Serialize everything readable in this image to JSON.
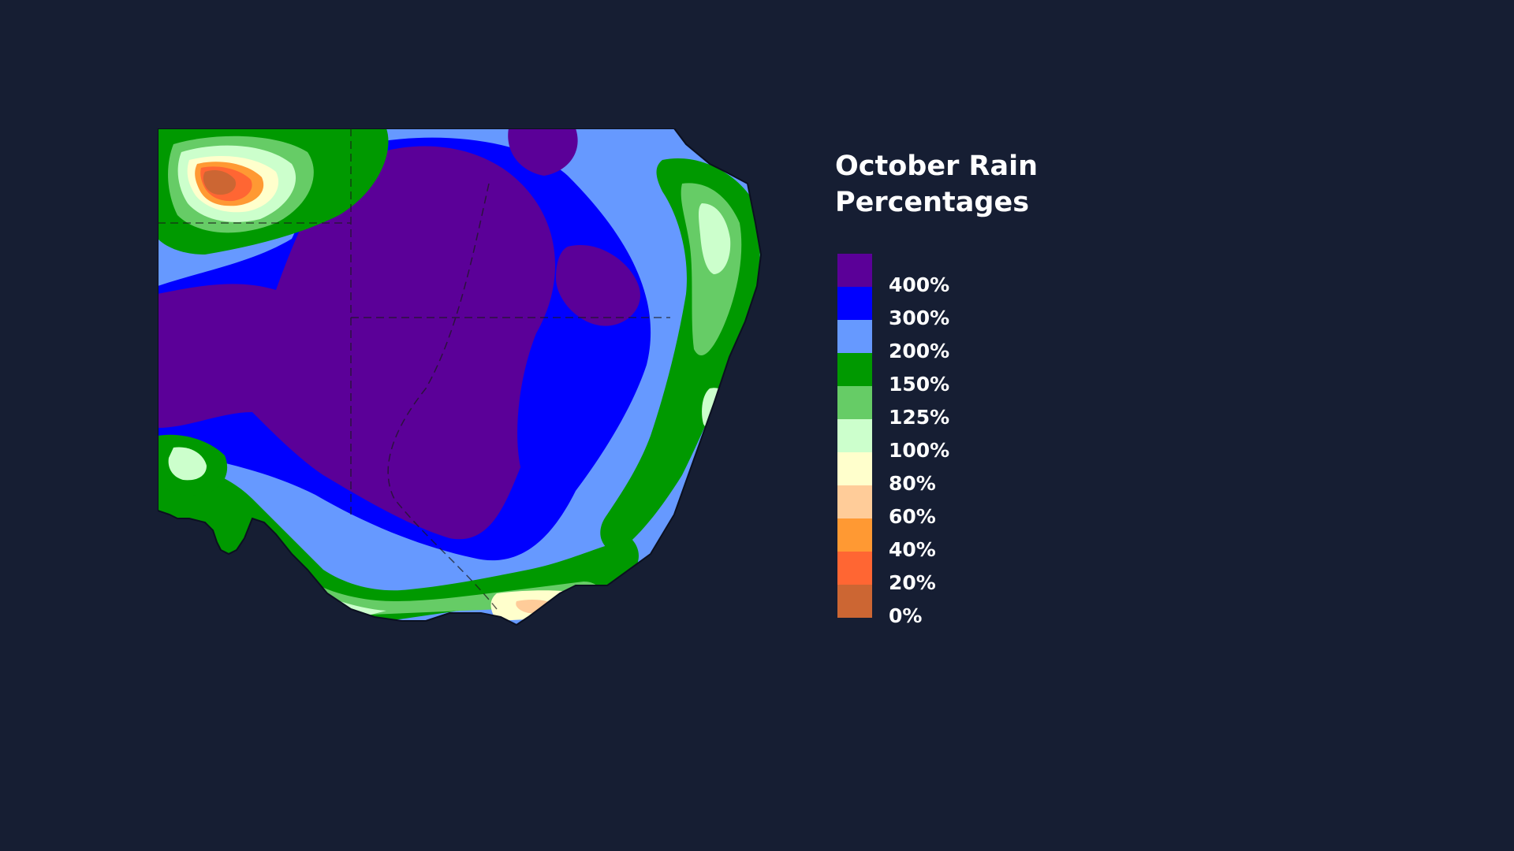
{
  "legend": {
    "title_line1": "October Rain",
    "title_line2": "Percentages",
    "colors": [
      "#5b0098",
      "#0000ff",
      "#6699ff",
      "#009900",
      "#66cc66",
      "#ccffcc",
      "#ffffcc",
      "#ffcc99",
      "#ff9933",
      "#ff6633",
      "#cc6633"
    ],
    "labels": [
      "400%",
      "300%",
      "200%",
      "150%",
      "125%",
      "100%",
      "80%",
      "60%",
      "40%",
      "20%",
      "0%"
    ]
  },
  "map": {
    "classes": {
      "purple": "#5b0098",
      "blue": "#0000ff",
      "lightblue": "#6699ff",
      "green": "#009900",
      "midgreen": "#66cc66",
      "palegreen": "#ccffcc",
      "cream": "#ffffcc",
      "peach": "#ffcc99",
      "orange": "#ff9933",
      "redorange": "#ff6633",
      "brown": "#cc6633"
    }
  }
}
